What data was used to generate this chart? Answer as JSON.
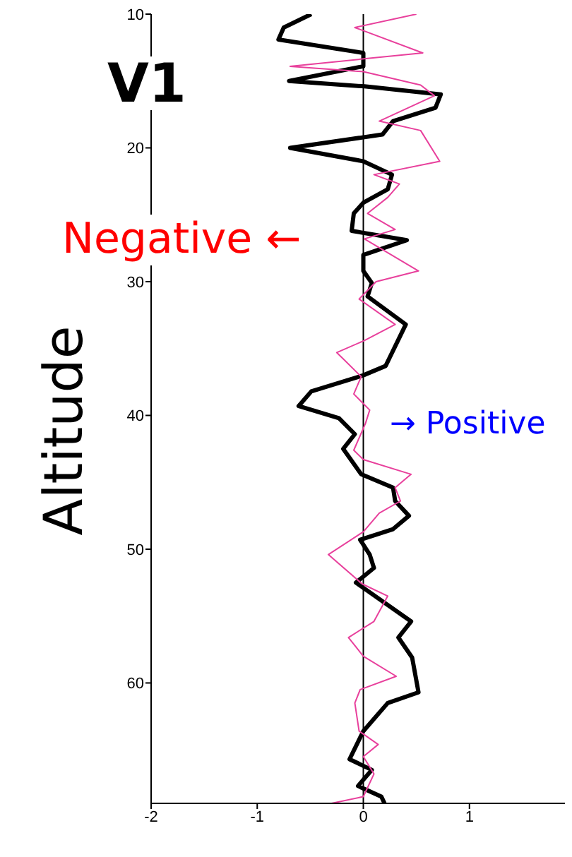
{
  "chart_data": {
    "type": "line",
    "title": "V1",
    "ylabel": "Altitude",
    "annotations": [
      "Negative ←",
      "→ Positive"
    ],
    "xlim": [
      -2,
      1.9
    ],
    "xticks": [
      -2,
      -1,
      0,
      1
    ],
    "ylim": [
      69,
      10
    ],
    "yticks": [
      10,
      20,
      30,
      40,
      50,
      60
    ],
    "grid": false,
    "legend": false,
    "marker": "none",
    "line_style": "solid",
    "ref_lines": [
      {
        "axis": "x",
        "value": 0,
        "color": "#000000"
      }
    ],
    "series": [
      {
        "color": "#000000",
        "x": [
          -0.49,
          -0.75,
          -0.8,
          0.0,
          0.0,
          -0.7,
          0.01,
          0.73,
          0.68,
          0.28,
          0.18,
          -0.69,
          0.0,
          0.27,
          0.23,
          0.0,
          -0.09,
          -0.11,
          0.41,
          0.0,
          0.0,
          0.08,
          0.04,
          0.4,
          0.21,
          0.0,
          -0.49,
          -0.61,
          -0.23,
          -0.08,
          -0.19,
          -0.02,
          0.28,
          0.3,
          0.43,
          0.28,
          -0.03,
          0.06,
          0.1,
          -0.07,
          0.45,
          0.33,
          0.46,
          0.52,
          0.23,
          0.0,
          -0.13,
          0.08,
          -0.05,
          0.17,
          0.2
        ],
        "values": [
          10,
          11,
          11.9,
          12.9,
          13.9,
          15,
          15.4,
          16,
          17,
          18,
          19,
          20,
          21,
          22,
          23.1,
          24.1,
          24.9,
          26.2,
          26.9,
          28,
          29.2,
          30.1,
          31.1,
          33.2,
          36.3,
          37,
          38.2,
          39.3,
          40.2,
          41.4,
          42.5,
          44.4,
          45.4,
          46.4,
          47.5,
          48.5,
          49.3,
          50.4,
          51.4,
          52.5,
          55.4,
          56.6,
          58.1,
          60.7,
          61.5,
          63.6,
          65.7,
          66.5,
          67.7,
          68.5,
          69
        ]
      },
      {
        "color": "#e8409c",
        "x": [
          0.5,
          -0.08,
          0.56,
          -0.69,
          0.0,
          0.54,
          0.67,
          0.15,
          0.54,
          0.72,
          0.1,
          0.34,
          0.23,
          0.04,
          0.3,
          0.01,
          0.52,
          0.12,
          -0.04,
          0.3,
          0.01,
          -0.25,
          -0.02,
          -0.09,
          0.06,
          0.02,
          -0.09,
          0.0,
          0.45,
          0.3,
          0.35,
          0.15,
          0.0,
          -0.33,
          -0.01,
          0.23,
          0.1,
          -0.14,
          0.0,
          0.31,
          -0.03,
          -0.08,
          -0.04,
          0.14,
          0.0,
          0.1,
          0.0,
          -0.3
        ],
        "values": [
          10,
          11,
          12.9,
          13.9,
          14.3,
          15.3,
          16.1,
          18,
          18.7,
          21,
          22,
          22.7,
          23.7,
          24.9,
          26.1,
          26.8,
          29.2,
          30,
          31.3,
          33.2,
          34.4,
          35.3,
          37.1,
          38.4,
          39.6,
          40.6,
          42.6,
          43.3,
          44.4,
          45.4,
          46.4,
          47.3,
          48.7,
          50.4,
          52.6,
          53.5,
          55.4,
          56.6,
          58,
          59.5,
          60.5,
          61.5,
          63.6,
          64.6,
          65.5,
          66.8,
          68.5,
          69
        ]
      }
    ]
  }
}
